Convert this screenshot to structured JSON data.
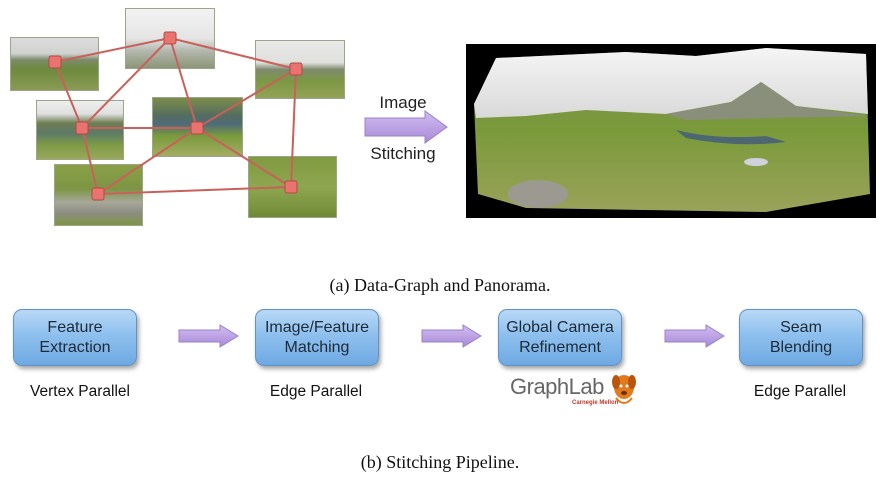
{
  "figure_a": {
    "arrow_label_line1": "Image",
    "arrow_label_line2": "Stitching",
    "caption": "(a) Data-Graph and Panorama."
  },
  "figure_b": {
    "stages": [
      {
        "line1": "Feature",
        "line2": "Extraction",
        "label": "Vertex Parallel"
      },
      {
        "line1": "Image/Feature",
        "line2": "Matching",
        "label": "Edge Parallel"
      },
      {
        "line1": "Global Camera",
        "line2": "Refinement",
        "label": ""
      },
      {
        "line1": "Seam",
        "line2": "Blending",
        "label": "Edge Parallel"
      }
    ],
    "logo": {
      "main": "GraphLab",
      "sub": "Carnegie Mellon"
    },
    "caption": "(b) Stitching Pipeline."
  },
  "colors": {
    "node_fill": "#e8736f",
    "edge": "#c9605a",
    "arrow_purple": "#b89be0",
    "stage_blue": "#8ec0ee",
    "logo_orange": "#e07a1c"
  }
}
